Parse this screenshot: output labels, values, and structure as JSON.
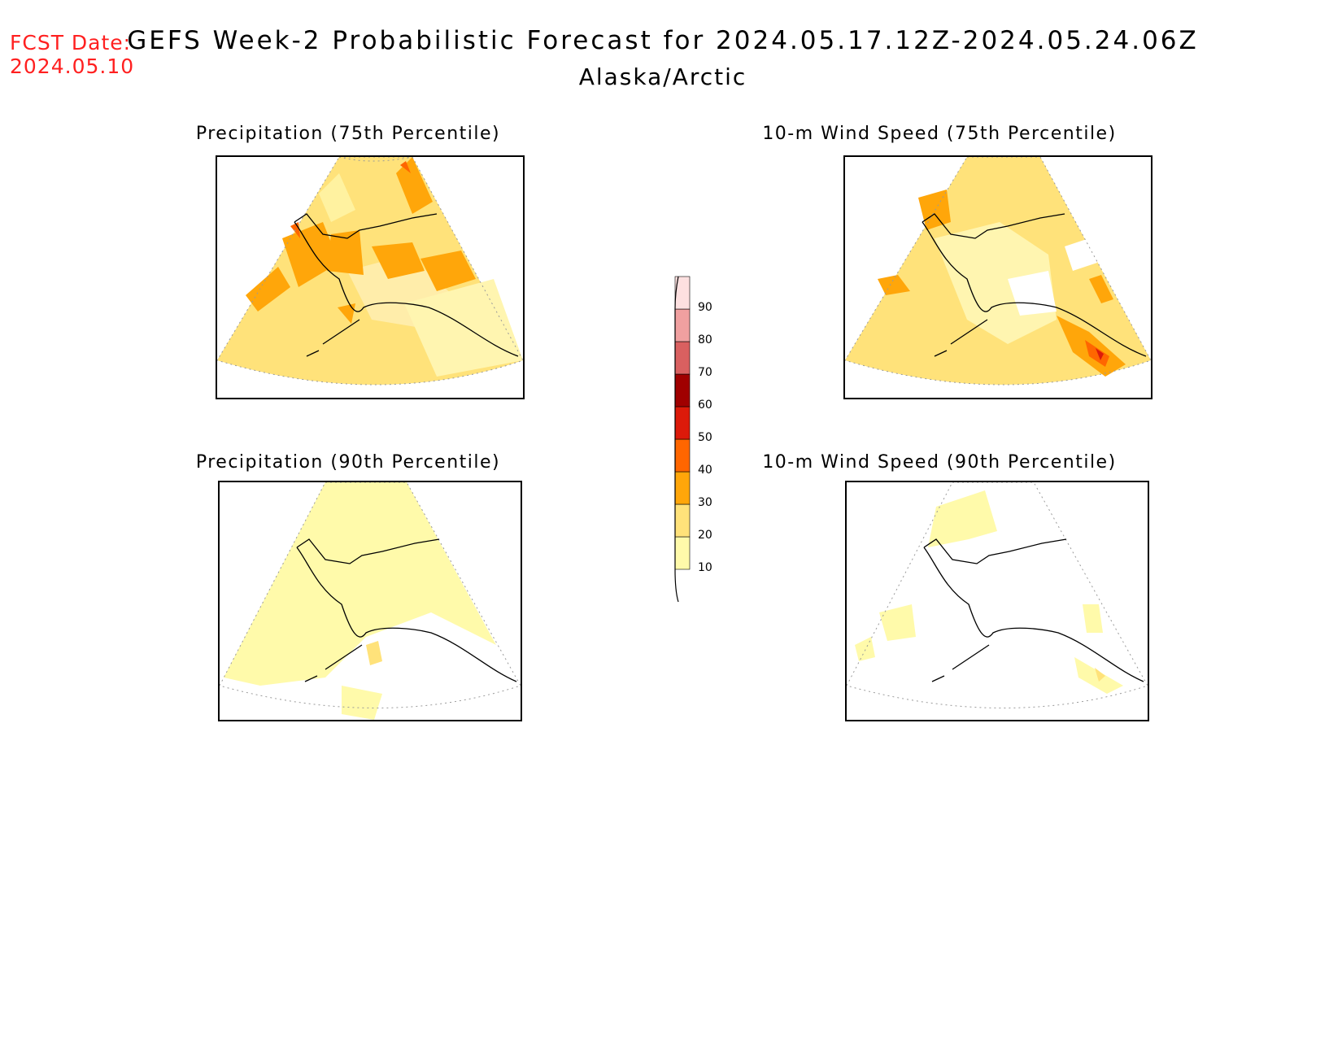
{
  "header": {
    "fcst_label": "FCST Date:",
    "fcst_date": "2024.05.10",
    "title": "GEFS Week-2 Probabilistic Forecast for 2024.05.17.12Z-2024.05.24.06Z",
    "subtitle": "Alaska/Arctic"
  },
  "panels": [
    {
      "title": "Precipitation (75th Percentile)",
      "max_category": 40
    },
    {
      "title": "10-m Wind Speed (75th Percentile)",
      "max_category": 50
    },
    {
      "title": "Precipitation (90th Percentile)",
      "max_category": 20
    },
    {
      "title": "10-m Wind Speed (90th Percentile)",
      "max_category": 40
    }
  ],
  "colorbar": {
    "levels": [
      "10",
      "20",
      "30",
      "40",
      "50",
      "60",
      "70",
      "80",
      "90"
    ],
    "colors": [
      "#fffaaa",
      "#ffe27a",
      "#ffa60a",
      "#ff6600",
      "#dc1a0a",
      "#a00000",
      "#d96060",
      "#f0a0a0",
      "#fde0e0"
    ]
  }
}
